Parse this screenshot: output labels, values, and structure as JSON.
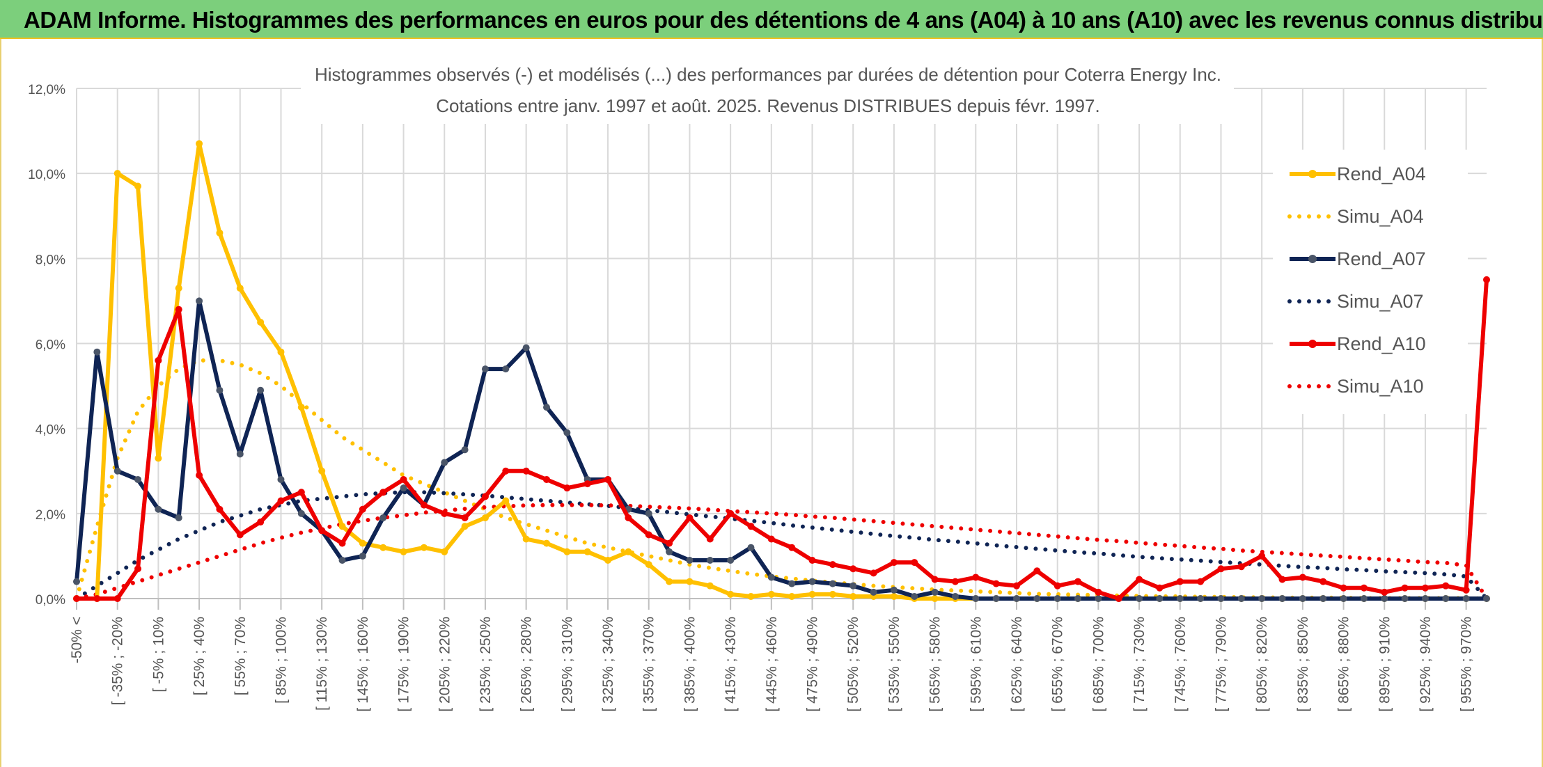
{
  "banner": {
    "title": "ADAM Informe. Histogrammes des performances en euros pour des détentions de 4 ans (A04) à 10 ans (A10) avec les revenus connus distribués"
  },
  "colors": {
    "banner_bg": "#7ccf7c",
    "A04": "#ffc000",
    "A07": "#0f2454",
    "A10": "#ee0000",
    "grid": "#d9d9d9"
  },
  "chart_data": {
    "type": "line",
    "title": "Histogrammes observés (-) et modélisés (...) des performances par durées de détention pour Coterra Energy Inc.",
    "subtitle": "Cotations entre janv. 1997 et août. 2025. Revenus DISTRIBUES depuis févr. 1997.",
    "ylim": [
      0,
      12
    ],
    "y_unit": "%",
    "y_ticks": [
      "0,0%",
      "2,0%",
      "4,0%",
      "6,0%",
      "8,0%",
      "10,0%",
      "12,0%"
    ],
    "grid": true,
    "legend_position": "right",
    "x_tick_labels": [
      "-50% <",
      "[ -35% ; -20%",
      "[ -5% ; 10%",
      "[ 25% ; 40%",
      "[ 55% ; 70%",
      "[ 85% ; 100%",
      "[ 115% ; 130%",
      "[ 145% ; 160%",
      "[ 175% ; 190%",
      "[ 205% ; 220%",
      "[ 235% ; 250%",
      "[ 265% ; 280%",
      "[ 295% ; 310%",
      "[ 325% ; 340%",
      "[ 355% ; 370%",
      "[ 385% ; 400%",
      "[ 415% ; 430%",
      "[ 445% ; 460%",
      "[ 475% ; 490%",
      "[ 505% ; 520%",
      "[ 535% ; 550%",
      "[ 565% ; 580%",
      "[ 595% ; 610%",
      "[ 625% ; 640%",
      "[ 655% ; 670%",
      "[ 685% ; 700%",
      "[ 715% ; 730%",
      "[ 745% ; 760%",
      "[ 775% ; 790%",
      "[ 805% ; 820%",
      "[ 835% ; 850%",
      "[ 865% ; 880%",
      "[ 895% ; 910%",
      "[ 925% ; 940%",
      "[ 955% ; 970%"
    ],
    "x_tick_every": 2,
    "series": [
      {
        "name": "Rend_A04",
        "style": "solid",
        "color": "#ffc000",
        "values": [
          0,
          0,
          10.0,
          9.7,
          3.3,
          7.3,
          10.7,
          8.6,
          7.3,
          6.5,
          5.8,
          4.5,
          3.0,
          1.7,
          1.3,
          1.2,
          1.1,
          1.2,
          1.1,
          1.7,
          1.9,
          2.3,
          1.4,
          1.3,
          1.1,
          1.1,
          0.9,
          1.1,
          0.8,
          0.4,
          0.4,
          0.3,
          0.1,
          0.05,
          0.1,
          0.05,
          0.1,
          0.1,
          0.05,
          0.05,
          0.05,
          0,
          0,
          0,
          0,
          0,
          0,
          0,
          0,
          0,
          0,
          0,
          0,
          0,
          0,
          0,
          0,
          0,
          0,
          0,
          0,
          0,
          0,
          0,
          0,
          0,
          0,
          0,
          0,
          0
        ]
      },
      {
        "name": "Simu_A04",
        "style": "dotted",
        "color": "#ffc000",
        "values": [
          0,
          1.7,
          3.3,
          4.4,
          5.0,
          5.4,
          5.6,
          5.6,
          5.5,
          5.3,
          5.0,
          4.6,
          4.2,
          3.8,
          3.5,
          3.2,
          2.9,
          2.7,
          2.5,
          2.3,
          2.1,
          1.9,
          1.75,
          1.6,
          1.45,
          1.3,
          1.2,
          1.1,
          1.0,
          0.9,
          0.8,
          0.72,
          0.65,
          0.58,
          0.52,
          0.47,
          0.42,
          0.38,
          0.34,
          0.3,
          0.27,
          0.24,
          0.21,
          0.19,
          0.17,
          0.15,
          0.13,
          0.11,
          0.1,
          0.09,
          0.08,
          0.07,
          0.06,
          0.05,
          0.05,
          0.04,
          0.04,
          0.03,
          0.03,
          0.02,
          0.02,
          0.02,
          0.02,
          0.01,
          0.01,
          0.01,
          0.01,
          0.01,
          0.01,
          0
        ]
      },
      {
        "name": "Rend_A07",
        "style": "solid",
        "color": "#0f2454",
        "values": [
          0.4,
          5.8,
          3.0,
          2.8,
          2.1,
          1.9,
          7.0,
          4.9,
          3.4,
          4.9,
          2.8,
          2.0,
          1.6,
          0.9,
          1.0,
          1.9,
          2.6,
          2.2,
          3.2,
          3.5,
          5.4,
          5.4,
          5.9,
          4.5,
          3.9,
          2.8,
          2.8,
          2.1,
          2.0,
          1.1,
          0.9,
          0.9,
          0.9,
          1.2,
          0.5,
          0.35,
          0.4,
          0.35,
          0.3,
          0.15,
          0.2,
          0.05,
          0.15,
          0.05,
          0,
          0,
          0,
          0,
          0,
          0,
          0,
          0,
          0,
          0,
          0,
          0,
          0,
          0,
          0,
          0,
          0,
          0,
          0,
          0,
          0,
          0,
          0,
          0,
          0,
          0
        ]
      },
      {
        "name": "Simu_A07",
        "style": "dotted",
        "color": "#0f2454",
        "values": [
          0,
          0.3,
          0.6,
          0.9,
          1.15,
          1.4,
          1.6,
          1.8,
          1.95,
          2.1,
          2.2,
          2.3,
          2.35,
          2.4,
          2.45,
          2.48,
          2.5,
          2.5,
          2.48,
          2.45,
          2.42,
          2.38,
          2.34,
          2.3,
          2.26,
          2.22,
          2.18,
          2.13,
          2.08,
          2.03,
          1.98,
          1.93,
          1.88,
          1.83,
          1.78,
          1.72,
          1.67,
          1.62,
          1.57,
          1.52,
          1.47,
          1.43,
          1.38,
          1.34,
          1.3,
          1.25,
          1.21,
          1.17,
          1.13,
          1.09,
          1.06,
          1.02,
          0.98,
          0.95,
          0.92,
          0.89,
          0.86,
          0.83,
          0.8,
          0.77,
          0.74,
          0.72,
          0.69,
          0.67,
          0.64,
          0.62,
          0.6,
          0.57,
          0.52,
          0
        ]
      },
      {
        "name": "Rend_A10",
        "style": "solid",
        "color": "#ee0000",
        "values": [
          0,
          0,
          0,
          0.7,
          5.6,
          6.8,
          2.9,
          2.1,
          1.5,
          1.8,
          2.3,
          2.5,
          1.6,
          1.3,
          2.1,
          2.5,
          2.8,
          2.2,
          2.0,
          1.9,
          2.4,
          3.0,
          3.0,
          2.8,
          2.6,
          2.7,
          2.8,
          1.9,
          1.5,
          1.3,
          1.9,
          1.4,
          2.0,
          1.7,
          1.4,
          1.2,
          0.9,
          0.8,
          0.7,
          0.6,
          0.85,
          0.85,
          0.45,
          0.4,
          0.5,
          0.35,
          0.3,
          0.65,
          0.3,
          0.4,
          0.15,
          0,
          0.45,
          0.25,
          0.4,
          0.4,
          0.7,
          0.75,
          1.0,
          0.45,
          0.5,
          0.4,
          0.25,
          0.25,
          0.15,
          0.25,
          0.25,
          0.3,
          0.2,
          7.5
        ]
      },
      {
        "name": "Simu_A10",
        "style": "dotted",
        "color": "#ee0000",
        "values": [
          0,
          0.1,
          0.25,
          0.4,
          0.55,
          0.7,
          0.85,
          1.0,
          1.15,
          1.3,
          1.43,
          1.55,
          1.65,
          1.75,
          1.83,
          1.9,
          1.96,
          2.02,
          2.07,
          2.11,
          2.15,
          2.17,
          2.19,
          2.2,
          2.2,
          2.2,
          2.19,
          2.18,
          2.16,
          2.14,
          2.12,
          2.09,
          2.06,
          2.03,
          2.0,
          1.97,
          1.93,
          1.9,
          1.86,
          1.82,
          1.78,
          1.74,
          1.7,
          1.66,
          1.62,
          1.58,
          1.54,
          1.5,
          1.46,
          1.42,
          1.38,
          1.35,
          1.31,
          1.27,
          1.24,
          1.2,
          1.17,
          1.13,
          1.1,
          1.07,
          1.04,
          1.01,
          0.98,
          0.95,
          0.92,
          0.89,
          0.86,
          0.84,
          0.78,
          0
        ]
      }
    ]
  }
}
